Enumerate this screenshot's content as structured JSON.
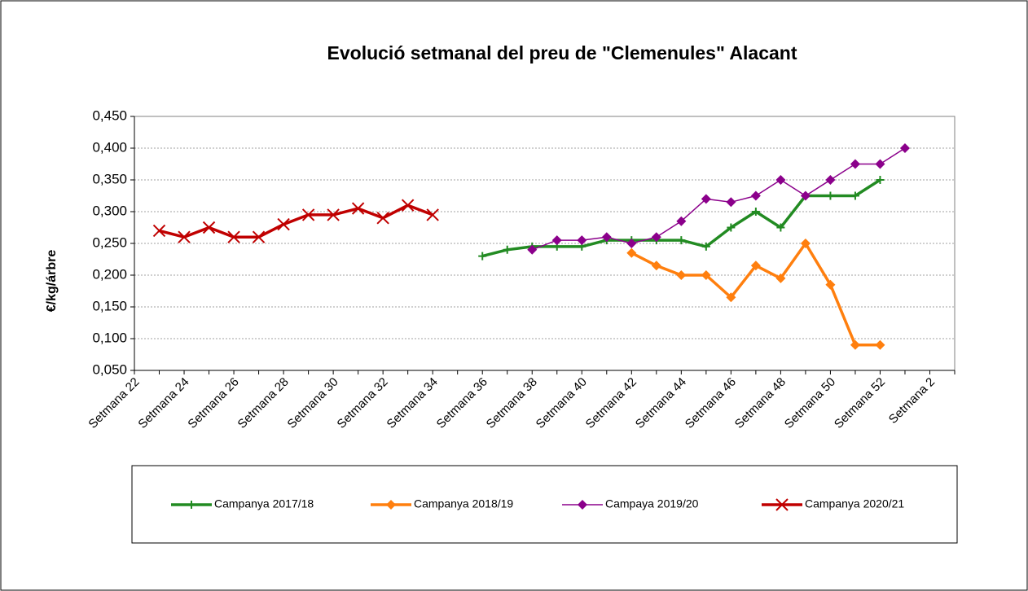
{
  "chart_data": {
    "type": "line",
    "title": "Evolució setmanal del preu de \"Clemenules\" Alacant",
    "y_label": "€/kg/árbre",
    "categories": [
      "Setmana 22",
      null,
      "Setmana 24",
      null,
      "Setmana 26",
      null,
      "Setmana 28",
      null,
      "Setmana 30",
      null,
      "Setmana 32",
      null,
      "Setmana 34",
      null,
      "Setmana 36",
      null,
      "Setmana 38",
      null,
      "Setmana 40",
      null,
      "Setmana 42",
      null,
      "Setmana 44",
      null,
      "Setmana 46",
      null,
      "Setmana 48",
      null,
      "Setmana 50",
      null,
      "Setmana 52",
      null,
      "Setmana 2",
      null
    ],
    "ylim": [
      0.05,
      0.45
    ],
    "yticks": [
      {
        "value": 0.05,
        "label": "0,050"
      },
      {
        "value": 0.1,
        "label": "0,100"
      },
      {
        "value": 0.15,
        "label": "0,150"
      },
      {
        "value": 0.2,
        "label": "0,200"
      },
      {
        "value": 0.25,
        "label": "0,250"
      },
      {
        "value": 0.3,
        "label": "0,300"
      },
      {
        "value": 0.35,
        "label": "0,350"
      },
      {
        "value": 0.4,
        "label": "0,400"
      },
      {
        "value": 0.45,
        "label": "0,450"
      }
    ],
    "grid": true,
    "legend": "bottom",
    "series": [
      {
        "name": "Campanya 2017/18",
        "color": "#228b22",
        "marker": "plus",
        "values": [
          null,
          null,
          null,
          null,
          null,
          null,
          null,
          null,
          null,
          null,
          null,
          null,
          null,
          null,
          0.23,
          0.24,
          0.245,
          0.245,
          0.245,
          0.255,
          0.255,
          0.255,
          0.255,
          0.245,
          0.275,
          0.3,
          0.275,
          0.325,
          0.325,
          0.325,
          0.35,
          null,
          null,
          null
        ]
      },
      {
        "name": "Campanya 2018/19",
        "color": "#ff7f0e",
        "marker": "diamond",
        "values": [
          null,
          null,
          null,
          null,
          null,
          null,
          null,
          null,
          null,
          null,
          null,
          null,
          null,
          null,
          null,
          null,
          null,
          null,
          null,
          null,
          0.235,
          0.215,
          0.2,
          0.2,
          0.165,
          0.215,
          0.195,
          0.25,
          0.185,
          0.09,
          0.09,
          null,
          null,
          null
        ]
      },
      {
        "name": "Campaya 2019/20",
        "color": "#8b008b",
        "marker": "diamond",
        "values": [
          null,
          null,
          null,
          null,
          null,
          null,
          null,
          null,
          null,
          null,
          null,
          null,
          null,
          null,
          null,
          null,
          0.24,
          0.255,
          0.255,
          0.26,
          0.25,
          0.26,
          0.285,
          0.32,
          0.315,
          0.325,
          0.35,
          0.325,
          0.35,
          0.375,
          0.375,
          0.4,
          null,
          null
        ]
      },
      {
        "name": "Campanya 2020/21",
        "color": "#c00000",
        "marker": "x",
        "values": [
          null,
          0.27,
          0.26,
          0.275,
          0.26,
          0.26,
          0.28,
          0.295,
          0.295,
          0.305,
          0.29,
          0.31,
          0.295,
          null,
          null,
          null,
          null,
          null,
          null,
          null,
          null,
          null,
          null,
          null,
          null,
          null,
          null,
          null,
          null,
          null,
          null,
          null,
          null,
          null
        ]
      }
    ]
  }
}
